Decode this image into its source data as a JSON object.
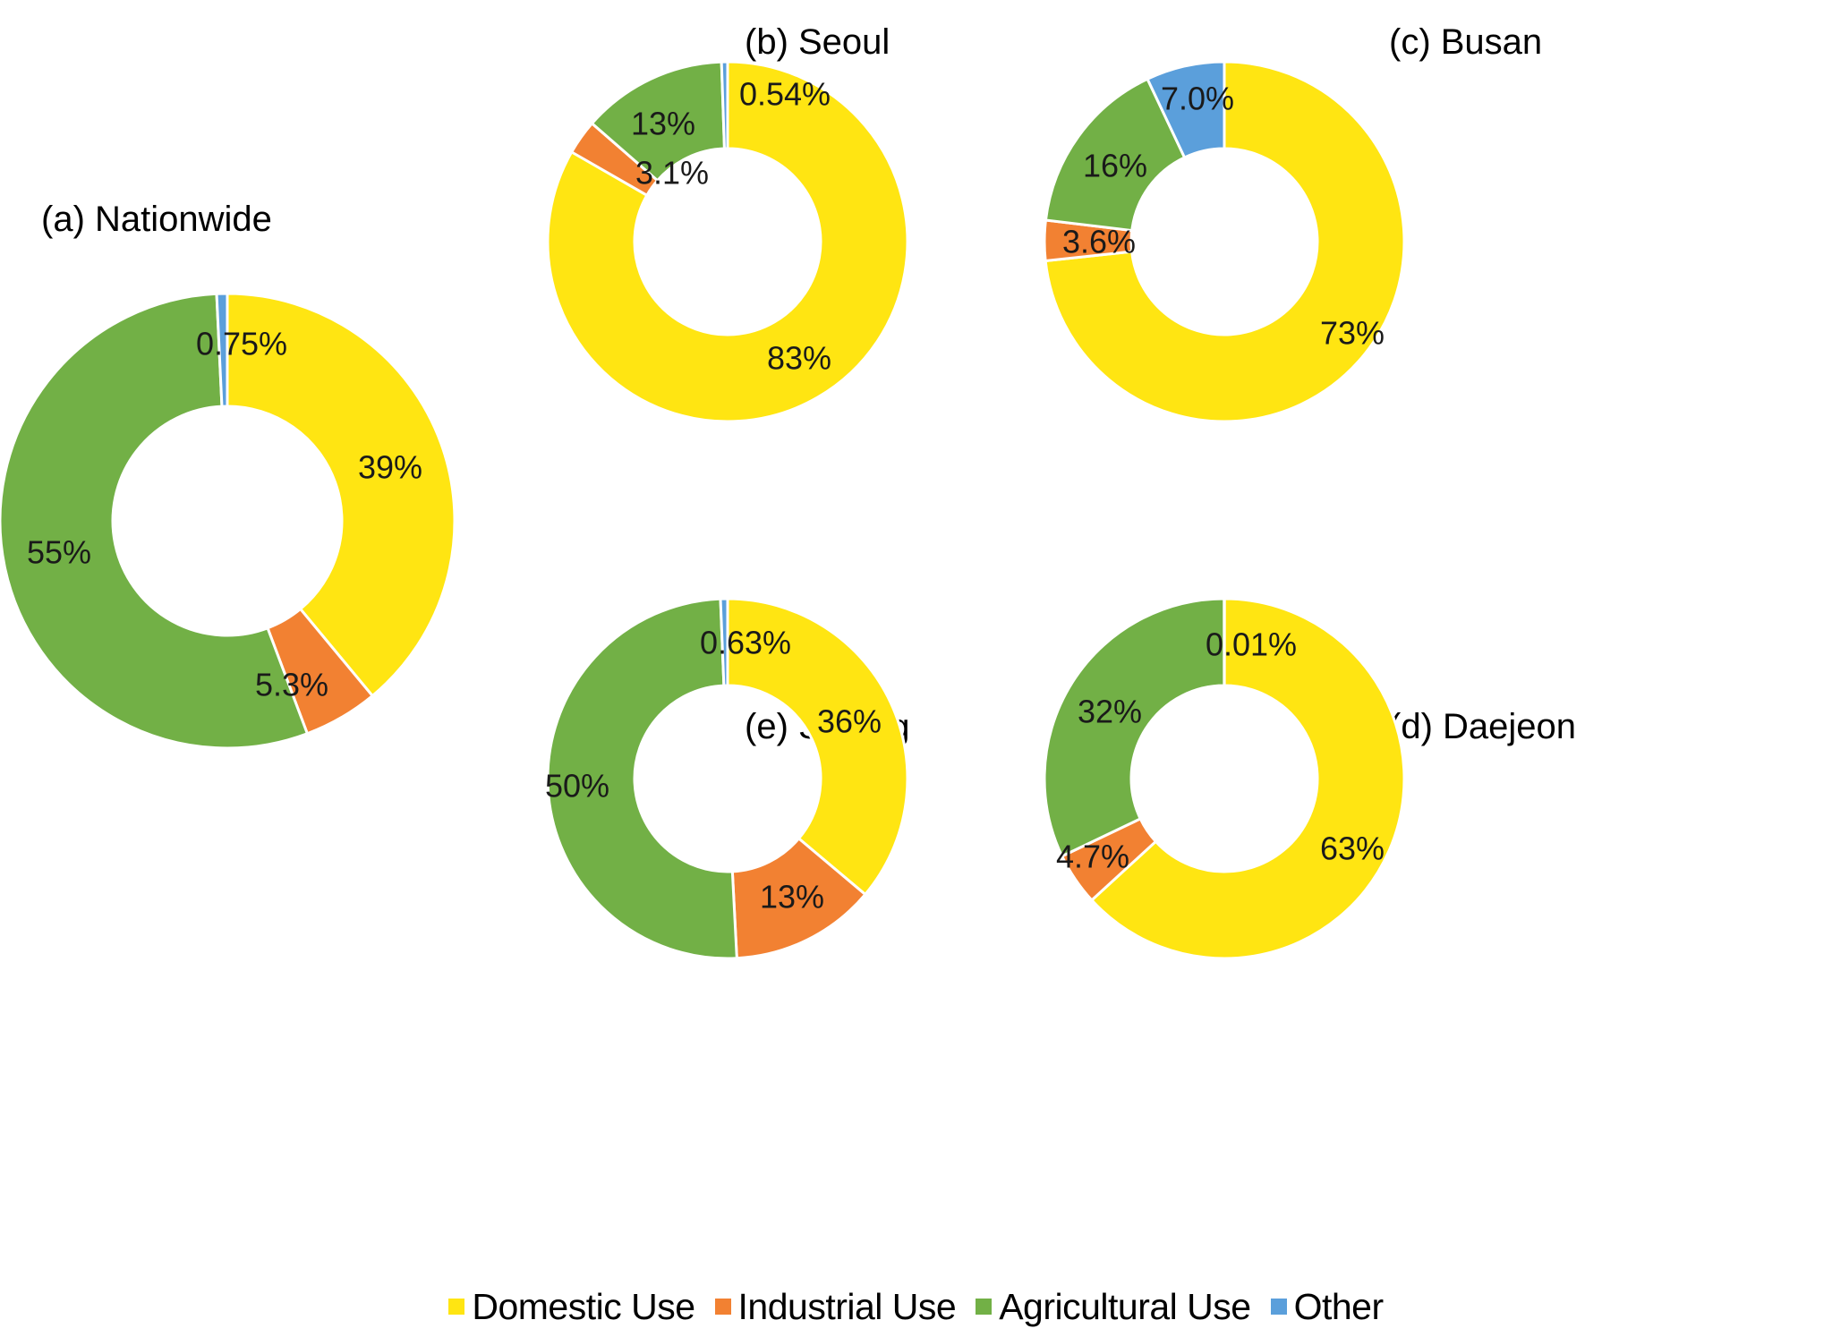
{
  "chart_data": [
    {
      "type": "pie",
      "subtype": "donut",
      "id": "a",
      "title": "(a) Nationwide",
      "start_angle": "12 o'clock",
      "direction": "clockwise",
      "categories": [
        "Domestic Use",
        "Industrial Use",
        "Agricultural Use",
        "Other"
      ],
      "values": [
        39,
        5.3,
        55,
        0.75
      ],
      "labels": [
        "39%",
        "5.3%",
        "55%",
        "0.75%"
      ]
    },
    {
      "type": "pie",
      "subtype": "donut",
      "id": "b",
      "title": "(b) Seoul",
      "start_angle": "12 o'clock",
      "direction": "clockwise",
      "categories": [
        "Domestic Use",
        "Industrial Use",
        "Agricultural Use",
        "Other"
      ],
      "values": [
        83,
        3.1,
        13,
        0.54
      ],
      "labels": [
        "83%",
        "3.1%",
        "13%",
        "0.54%"
      ]
    },
    {
      "type": "pie",
      "subtype": "donut",
      "id": "c",
      "title": "(c) Busan",
      "start_angle": "12 o'clock",
      "direction": "clockwise",
      "categories": [
        "Domestic Use",
        "Industrial Use",
        "Agricultural Use",
        "Other"
      ],
      "values": [
        73,
        3.6,
        16,
        7.0
      ],
      "labels": [
        "73%",
        "3.6%",
        "16%",
        "7.0%"
      ]
    },
    {
      "type": "pie",
      "subtype": "donut",
      "id": "e",
      "title": "(e) Sejong",
      "start_angle": "12 o'clock",
      "direction": "clockwise",
      "categories": [
        "Domestic Use",
        "Industrial Use",
        "Agricultural Use",
        "Other"
      ],
      "values": [
        36,
        13,
        50,
        0.63
      ],
      "labels": [
        "36%",
        "13%",
        "50%",
        "0.63%"
      ]
    },
    {
      "type": "pie",
      "subtype": "donut",
      "id": "d",
      "title": "(d) Daejeon",
      "start_angle": "12 o'clock",
      "direction": "clockwise",
      "categories": [
        "Domestic Use",
        "Industrial Use",
        "Agricultural Use",
        "Other"
      ],
      "values": [
        63,
        4.7,
        32,
        0.01
      ],
      "labels": [
        "63%",
        "4.7%",
        "32%",
        "0.01%"
      ]
    }
  ],
  "legend": {
    "placement": "bottom-center",
    "items": [
      {
        "label": "Domestic Use",
        "color": "#FFE512"
      },
      {
        "label": "Industrial Use",
        "color": "#F28132"
      },
      {
        "label": "Agricultural Use",
        "color": "#72B046"
      },
      {
        "label": "Other",
        "color": "#5B9FDB"
      }
    ]
  },
  "colors": {
    "Domestic Use": "#FFE512",
    "Industrial Use": "#F28132",
    "Agricultural Use": "#72B046",
    "Other": "#5B9FDB",
    "slice_border": "#FFFFFF",
    "text": "#000000"
  }
}
